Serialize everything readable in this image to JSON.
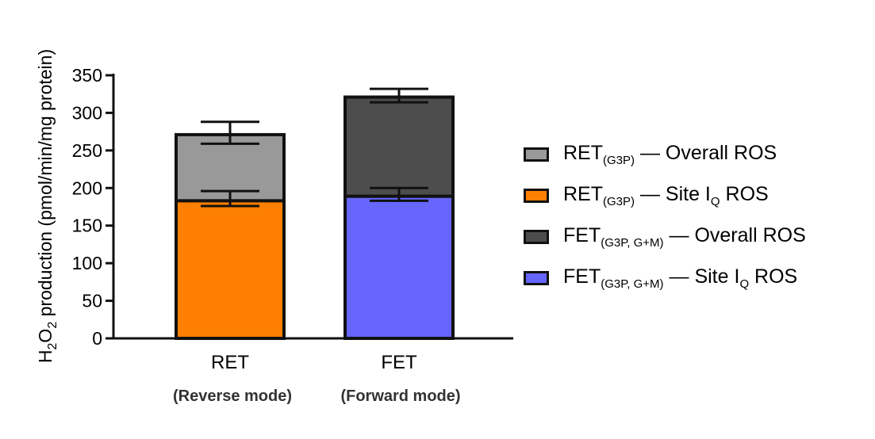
{
  "chart_data": {
    "type": "bar",
    "stacked": true,
    "categories": [
      "RET",
      "FET"
    ],
    "category_sublabels": [
      "(Reverse mode)",
      "(Forward mode)"
    ],
    "ylabel": "H2O2 production  (pmol/min/mg protein)",
    "ylim": [
      0,
      350
    ],
    "yticks": [
      0,
      50,
      100,
      150,
      200,
      250,
      300,
      350
    ],
    "bars": [
      {
        "category": "RET",
        "site_value": 183,
        "site_error_low": 176,
        "site_error_high": 196,
        "total_value": 271,
        "total_error_low": 259,
        "total_error_high": 288,
        "site_color": "#ff8000",
        "overall_color": "#999999"
      },
      {
        "category": "FET",
        "site_value": 189,
        "site_error_low": 183,
        "site_error_high": 200,
        "total_value": 321,
        "total_error_low": 314,
        "total_error_high": 332,
        "site_color": "#6666ff",
        "overall_color": "#4d4d4d"
      }
    ],
    "legend": [
      {
        "base": "RET",
        "sub": "(G3P)",
        "text": "— Overall ROS",
        "subscript_q": false,
        "color": "#999999"
      },
      {
        "base": "RET",
        "sub": "(G3P)",
        "text": "— Site I",
        "subscript_q": true,
        "tail": " ROS",
        "color": "#ff8000"
      },
      {
        "base": "FET",
        "sub": "(G3P, G+M)",
        "text": "— Overall ROS",
        "subscript_q": false,
        "color": "#4d4d4d"
      },
      {
        "base": "FET",
        "sub": "(G3P, G+M)",
        "text": "—  Site I",
        "subscript_q": true,
        "tail": " ROS",
        "color": "#6666ff"
      }
    ],
    "legend_q_sub": "Q"
  }
}
